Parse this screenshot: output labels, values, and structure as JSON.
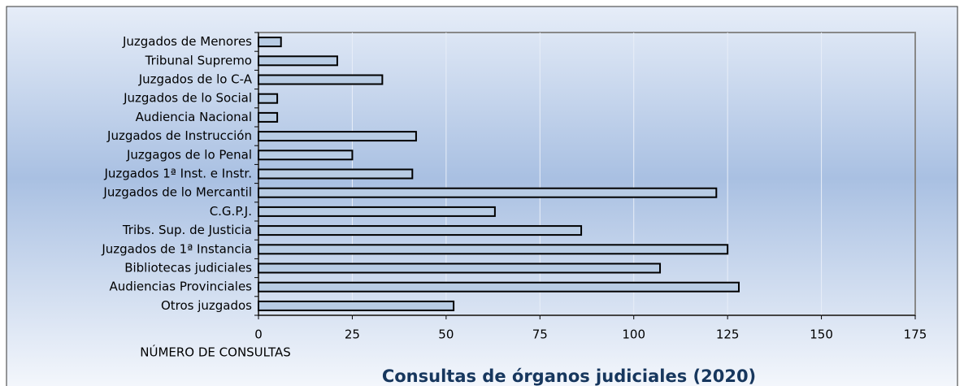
{
  "chart_data": {
    "type": "hbar",
    "title": "Consultas de órganos judiciales (2020)",
    "x_label": "NÚMERO DE CONSULTAS",
    "categories": [
      "Juzgados de Menores",
      "Tribunal Supremo",
      "Juzgados de lo C-A",
      "Juzgados de lo Social",
      "Audiencia Nacional",
      "Juzgados de Instrucción",
      "Juzgagos de lo Penal",
      "Juzgados 1ª Inst. e Instr.",
      "Juzgados de lo Mercantil",
      "C.G.P.J.",
      "Tribs. Sup. de Justicia",
      "Juzgados de 1ª Instancia",
      "Bibliotecas judiciales",
      "Audiencias Provinciales",
      "Otros juzgados"
    ],
    "values": [
      6,
      21,
      33,
      5,
      5,
      42,
      25,
      41,
      122,
      63,
      86,
      125,
      107,
      128,
      52
    ],
    "color": "#b8cce4",
    "xlim": [
      0,
      175
    ],
    "xticks": [
      0,
      25,
      50,
      75,
      100,
      125,
      150,
      175
    ],
    "grid": true
  }
}
